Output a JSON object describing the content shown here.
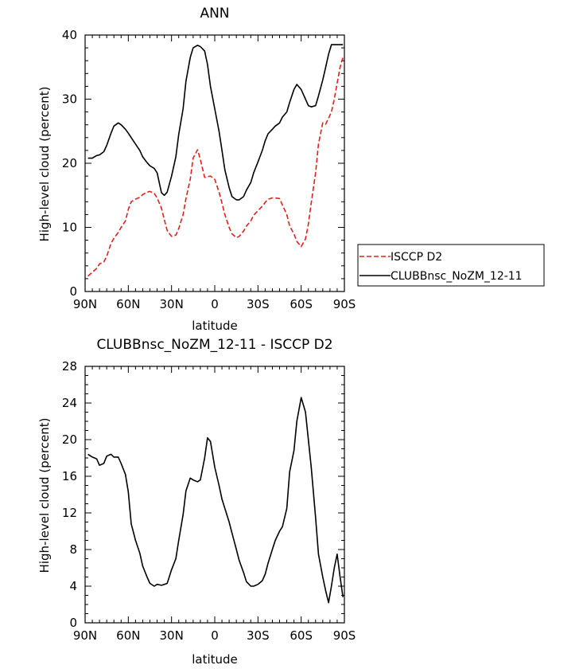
{
  "chart_data": [
    {
      "type": "line",
      "title": "ANN",
      "xlabel": "latitude",
      "ylabel": "High-level cloud (percent)",
      "xlim": [
        -90,
        90
      ],
      "ylim": [
        0,
        40
      ],
      "x_ticks": [
        -90,
        -60,
        -30,
        0,
        30,
        60,
        90
      ],
      "x_tick_labels": [
        "90N",
        "60N",
        "30N",
        "0",
        "30S",
        "60S",
        "90S"
      ],
      "y_ticks": [
        0,
        10,
        20,
        30,
        40
      ],
      "y_tick_labels": [
        "0",
        "10",
        "20",
        "30",
        "40"
      ],
      "legend_position": "right",
      "series": [
        {
          "name": "ISCCP D2",
          "color": "#e0201b",
          "dash": "dashed",
          "x": [
            -88,
            -85,
            -82,
            -80,
            -77,
            -75,
            -72,
            -70,
            -67,
            -65,
            -62,
            -60,
            -58,
            -55,
            -52,
            -50,
            -47,
            -45,
            -42,
            -40,
            -37,
            -35,
            -33,
            -30,
            -27,
            -25,
            -22,
            -20,
            -17,
            -15,
            -12,
            -10,
            -7,
            -5,
            -3,
            0,
            3,
            5,
            7,
            10,
            12,
            15,
            17,
            20,
            22,
            25,
            27,
            30,
            33,
            35,
            37,
            40,
            42,
            45,
            47,
            50,
            52,
            55,
            57,
            60,
            63,
            65,
            67,
            70,
            72,
            75,
            77,
            79,
            81,
            83,
            85,
            87,
            89
          ],
          "y": [
            2.4,
            3.0,
            3.6,
            4.3,
            4.6,
            5.5,
            7.5,
            8.3,
            9.2,
            10.0,
            11.0,
            12.8,
            14.0,
            14.4,
            14.7,
            15.1,
            15.5,
            15.6,
            15.3,
            14.6,
            13.0,
            11.2,
            9.5,
            8.6,
            8.8,
            9.8,
            12.0,
            14.5,
            17.5,
            20.8,
            22.1,
            20.6,
            17.8,
            17.9,
            18.0,
            17.5,
            15.5,
            13.8,
            12.0,
            10.0,
            9.0,
            8.4,
            8.6,
            9.4,
            10.2,
            11.0,
            11.9,
            12.6,
            13.3,
            13.9,
            14.4,
            14.6,
            14.6,
            14.5,
            13.5,
            12.0,
            10.2,
            9.0,
            7.8,
            7.0,
            8.2,
            10.5,
            13.8,
            18.5,
            23.0,
            26.3,
            26.1,
            27.0,
            28.0,
            30.0,
            32.5,
            35.0,
            36.5
          ]
        },
        {
          "name": "CLUBBnsc_NoZM_12-11",
          "color": "#000000",
          "dash": "solid",
          "x": [
            -88,
            -85,
            -82,
            -80,
            -77,
            -75,
            -72,
            -70,
            -67,
            -65,
            -62,
            -60,
            -58,
            -55,
            -52,
            -50,
            -47,
            -45,
            -42,
            -40,
            -37,
            -35,
            -33,
            -30,
            -27,
            -25,
            -22,
            -20,
            -17,
            -15,
            -12,
            -10,
            -7,
            -5,
            -3,
            0,
            3,
            5,
            7,
            10,
            12,
            15,
            17,
            20,
            22,
            25,
            27,
            30,
            33,
            35,
            37,
            40,
            42,
            45,
            47,
            50,
            52,
            55,
            57,
            60,
            63,
            65,
            67,
            70,
            72,
            75,
            77,
            79,
            81,
            83,
            85,
            87,
            89
          ],
          "y": [
            20.8,
            20.8,
            21.2,
            21.3,
            21.8,
            22.8,
            24.7,
            25.8,
            26.3,
            26.0,
            25.3,
            24.7,
            24.0,
            23.0,
            22.0,
            21.0,
            20.1,
            19.6,
            19.2,
            18.5,
            15.4,
            15.0,
            15.5,
            18.0,
            21.0,
            24.5,
            28.5,
            32.8,
            36.5,
            38.0,
            38.4,
            38.2,
            37.5,
            35.4,
            32.0,
            28.5,
            25.0,
            22.0,
            19.0,
            16.2,
            14.8,
            14.3,
            14.3,
            14.8,
            15.8,
            17.0,
            18.5,
            20.2,
            22.0,
            23.5,
            24.6,
            25.3,
            25.8,
            26.3,
            27.2,
            28.0,
            29.5,
            31.5,
            32.3,
            31.5,
            30.0,
            29.0,
            28.8,
            29.0,
            30.5,
            33.0,
            35.0,
            37.0,
            38.5,
            38.5,
            38.5,
            38.5,
            38.5
          ]
        }
      ]
    },
    {
      "type": "line",
      "title": "CLUBBnsc_NoZM_12-11 - ISCCP D2",
      "xlabel": "latitude",
      "ylabel": "High-level cloud (percent)",
      "xlim": [
        -90,
        90
      ],
      "ylim": [
        0,
        28
      ],
      "x_ticks": [
        -90,
        -60,
        -30,
        0,
        30,
        60,
        90
      ],
      "x_tick_labels": [
        "90N",
        "60N",
        "30N",
        "0",
        "30S",
        "60S",
        "90S"
      ],
      "y_ticks": [
        0,
        4,
        8,
        12,
        16,
        20,
        24,
        28
      ],
      "y_tick_labels": [
        "0",
        "4",
        "8",
        "12",
        "16",
        "20",
        "24",
        "28"
      ],
      "series": [
        {
          "color": "#000000",
          "dash": "solid",
          "x": [
            -88,
            -85,
            -82,
            -80,
            -77,
            -75,
            -72,
            -70,
            -67,
            -65,
            -62,
            -60,
            -58,
            -55,
            -52,
            -50,
            -47,
            -45,
            -42,
            -40,
            -37,
            -35,
            -33,
            -30,
            -27,
            -25,
            -22,
            -20,
            -17,
            -15,
            -12,
            -10,
            -7,
            -5,
            -3,
            0,
            3,
            5,
            7,
            10,
            12,
            15,
            17,
            20,
            22,
            25,
            27,
            30,
            33,
            35,
            37,
            40,
            42,
            45,
            47,
            50,
            52,
            55,
            57,
            60,
            63,
            65,
            67,
            70,
            72,
            75,
            77,
            79,
            81,
            83,
            85,
            87,
            89
          ],
          "y": [
            18.4,
            18.1,
            17.9,
            17.2,
            17.4,
            18.2,
            18.4,
            18.1,
            18.1,
            17.4,
            16.2,
            14.3,
            10.8,
            9.0,
            7.6,
            6.2,
            5.0,
            4.3,
            4.0,
            4.2,
            4.1,
            4.2,
            4.3,
            5.8,
            7.0,
            9.0,
            11.8,
            14.4,
            15.8,
            15.6,
            15.4,
            15.6,
            18.0,
            20.2,
            19.8,
            17.0,
            15.0,
            13.5,
            12.5,
            11.0,
            9.8,
            8.0,
            6.8,
            5.5,
            4.5,
            4.0,
            4.0,
            4.2,
            4.6,
            5.3,
            6.5,
            8.0,
            9.0,
            10.0,
            10.5,
            12.5,
            16.5,
            18.8,
            22.0,
            24.6,
            23.0,
            20.0,
            17.0,
            11.5,
            7.5,
            5.0,
            3.5,
            2.2,
            4.0,
            6.0,
            7.5,
            5.0,
            2.8
          ]
        }
      ]
    }
  ]
}
